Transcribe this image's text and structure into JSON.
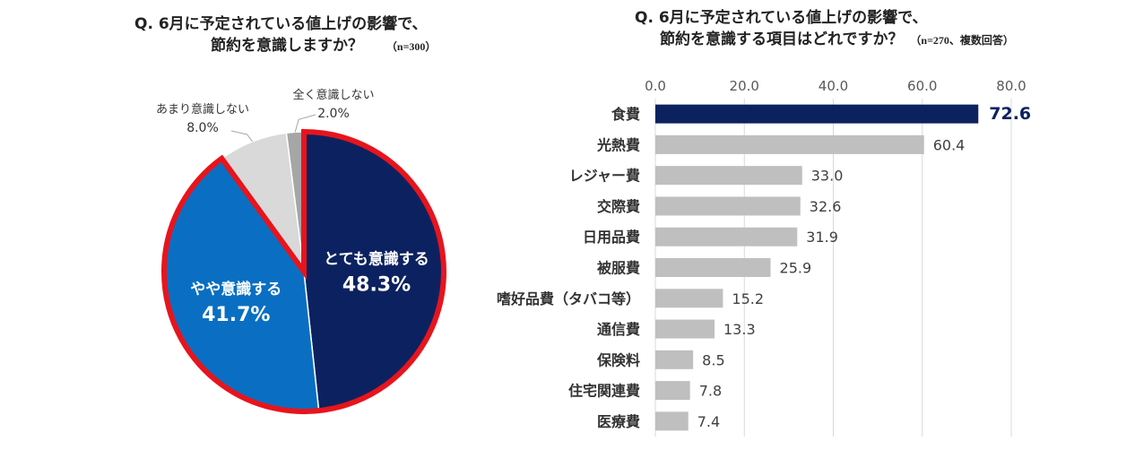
{
  "pie_chart": {
    "title_line1": "Q. 6月に予定されている値上げの影響で、",
    "title_line2": "節約を意識しますか？",
    "note": "（n=300）"
  },
  "bar_chart": {
    "title_line1": "Q. 6月に予定されている値上げの影響で、",
    "title_line2": "節約を意識する項目はどれですか？",
    "note": "（n=270、複数回答）"
  },
  "colors": {
    "navy": "#0c2260",
    "blue": "#0a6fc2",
    "light_gray": "#d9d9d9",
    "gray": "#a6a6a6",
    "bar_gray": "#bfbfbf",
    "highlight_red": "#e8141c"
  },
  "chart_data": [
    {
      "type": "pie",
      "title": "Q. 6月に予定されている値上げの影響で、節約を意識しますか？",
      "note": "（n=300）",
      "slices": [
        {
          "label": "とても意識する",
          "value": 48.3,
          "display": "48.3%",
          "color": "#0c2260"
        },
        {
          "label": "やや意識する",
          "value": 41.7,
          "display": "41.7%",
          "color": "#0a6fc2"
        },
        {
          "label": "あまり意識しない",
          "value": 8.0,
          "display": "8.0%",
          "color": "#d9d9d9"
        },
        {
          "label": "全く意識しない",
          "value": 2.0,
          "display": "2.0%",
          "color": "#a6a6a6"
        }
      ]
    },
    {
      "type": "bar",
      "orientation": "horizontal",
      "title": "Q. 6月に予定されている値上げの影響で、節約を意識する項目はどれですか？",
      "note": "（n=270、複数回答）",
      "categories": [
        "食費",
        "光熱費",
        "レジャー費",
        "交際費",
        "日用品費",
        "被服費",
        "嗜好品費（タバコ等）",
        "通信費",
        "保険料",
        "住宅関連費",
        "医療費"
      ],
      "values": [
        72.6,
        60.4,
        33.0,
        32.6,
        31.9,
        25.9,
        15.2,
        13.3,
        8.5,
        7.8,
        7.4
      ],
      "value_labels": [
        "72.6",
        "60.4",
        "33.0",
        "32.6",
        "31.9",
        "25.9",
        "15.2",
        "13.3",
        "8.5",
        "7.8",
        "7.4"
      ],
      "xlim": [
        0,
        80
      ],
      "ticks": [
        "0.0",
        "20.0",
        "40.0",
        "60.0",
        "80.0"
      ],
      "grid": true,
      "highlight_index": 0
    }
  ]
}
